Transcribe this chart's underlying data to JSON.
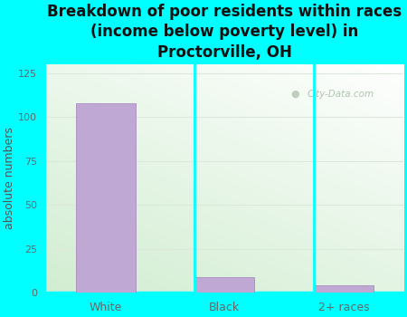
{
  "title": "Breakdown of poor residents within races\n(income below poverty level) in\nProctorville, OH",
  "categories": [
    "White",
    "Black",
    "2+ races"
  ],
  "values": [
    108,
    9,
    4
  ],
  "bar_color": "#c0a8d4",
  "bar_edge_color": "#a080b8",
  "ylabel": "absolute numbers",
  "ylim": [
    0,
    130
  ],
  "yticks": [
    0,
    25,
    50,
    75,
    100,
    125
  ],
  "background_outer": "#00ffff",
  "grid_color": "#dde8dd",
  "axis_label_color": "#555555",
  "tick_label_color": "#666666",
  "title_fontsize": 12,
  "ylabel_fontsize": 9,
  "watermark": "City-Data.com",
  "watermark_color": "#aabcaa"
}
